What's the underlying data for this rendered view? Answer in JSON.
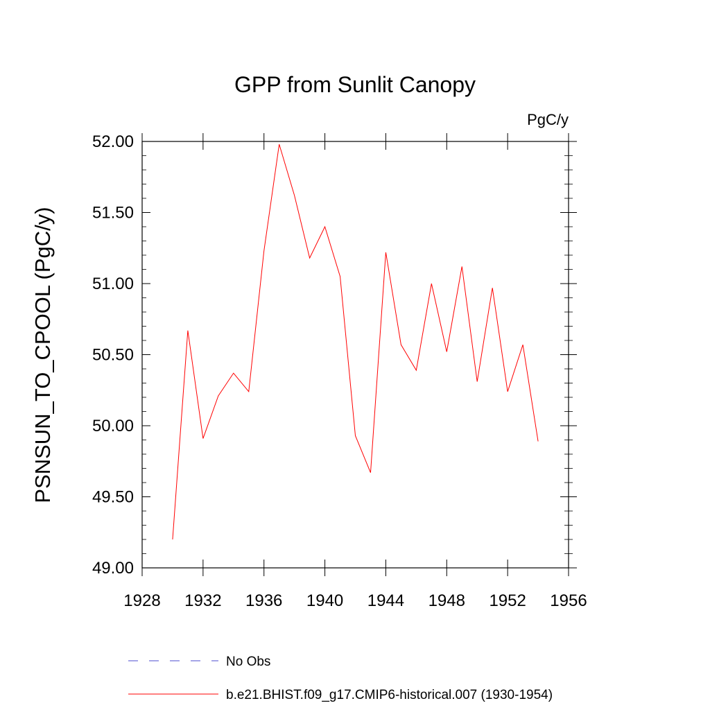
{
  "chart_data": {
    "type": "line",
    "title": "GPP from Sunlit Canopy",
    "units": "PgC/y",
    "xlabel": "",
    "ylabel": "PSNSUN_TO_CPOOL  (PgC/y)",
    "xlim": [
      1928,
      1956
    ],
    "ylim": [
      49.0,
      52.0
    ],
    "x_ticks": [
      1928,
      1932,
      1936,
      1940,
      1944,
      1948,
      1952,
      1956
    ],
    "x_tick_labels": [
      "1928",
      "1932",
      "1936",
      "1940",
      "1944",
      "1948",
      "1952",
      "1956"
    ],
    "y_ticks": [
      49.0,
      49.5,
      50.0,
      50.5,
      51.0,
      51.5,
      52.0
    ],
    "y_tick_labels": [
      "49.00",
      "49.50",
      "50.00",
      "50.50",
      "51.00",
      "51.50",
      "52.00"
    ],
    "grid": false,
    "series": [
      {
        "name": "b.e21.BHIST.f09_g17.CMIP6-historical.007 (1930-1954)",
        "color": "#ff0000",
        "x": [
          1930,
          1931,
          1932,
          1933,
          1934,
          1935,
          1936,
          1937,
          1938,
          1939,
          1940,
          1941,
          1942,
          1943,
          1944,
          1945,
          1946,
          1947,
          1948,
          1949,
          1950,
          1951,
          1952,
          1953,
          1954
        ],
        "values": [
          49.2,
          50.67,
          49.91,
          50.21,
          50.37,
          50.24,
          51.23,
          51.98,
          51.62,
          51.18,
          51.4,
          51.05,
          49.93,
          49.67,
          51.22,
          50.57,
          50.39,
          51.0,
          50.52,
          51.12,
          50.31,
          50.97,
          50.24,
          50.57,
          49.89
        ]
      }
    ],
    "legend": [
      {
        "label": "No Obs",
        "style": "dashed",
        "color": "#4b4bcf"
      },
      {
        "label": "b.e21.BHIST.f09_g17.CMIP6-historical.007 (1930-1954)",
        "style": "solid",
        "color": "#ff0000"
      }
    ],
    "legend_position": "bottom-left"
  }
}
